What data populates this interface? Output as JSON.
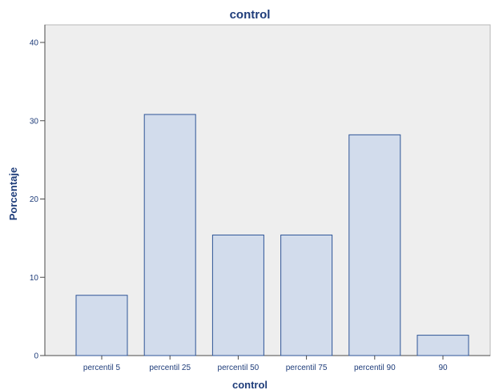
{
  "chart_data": {
    "type": "bar",
    "title": "control",
    "xlabel": "control",
    "ylabel": "Porcentaje",
    "categories": [
      "percentil 5",
      "percentil 25",
      "percentil 50",
      "percentil 75",
      "percentil 90",
      "90"
    ],
    "values": [
      7.7,
      30.8,
      15.4,
      15.4,
      28.2,
      2.6
    ],
    "ylim": [
      0,
      42
    ],
    "yticks": [
      0,
      10,
      20,
      30,
      40
    ],
    "grid": false,
    "colors": {
      "bar_fill": "#d2dcec",
      "bar_stroke": "#2f5597",
      "text": "#1f3d7a",
      "plot_bg": "#eeeeee"
    }
  }
}
